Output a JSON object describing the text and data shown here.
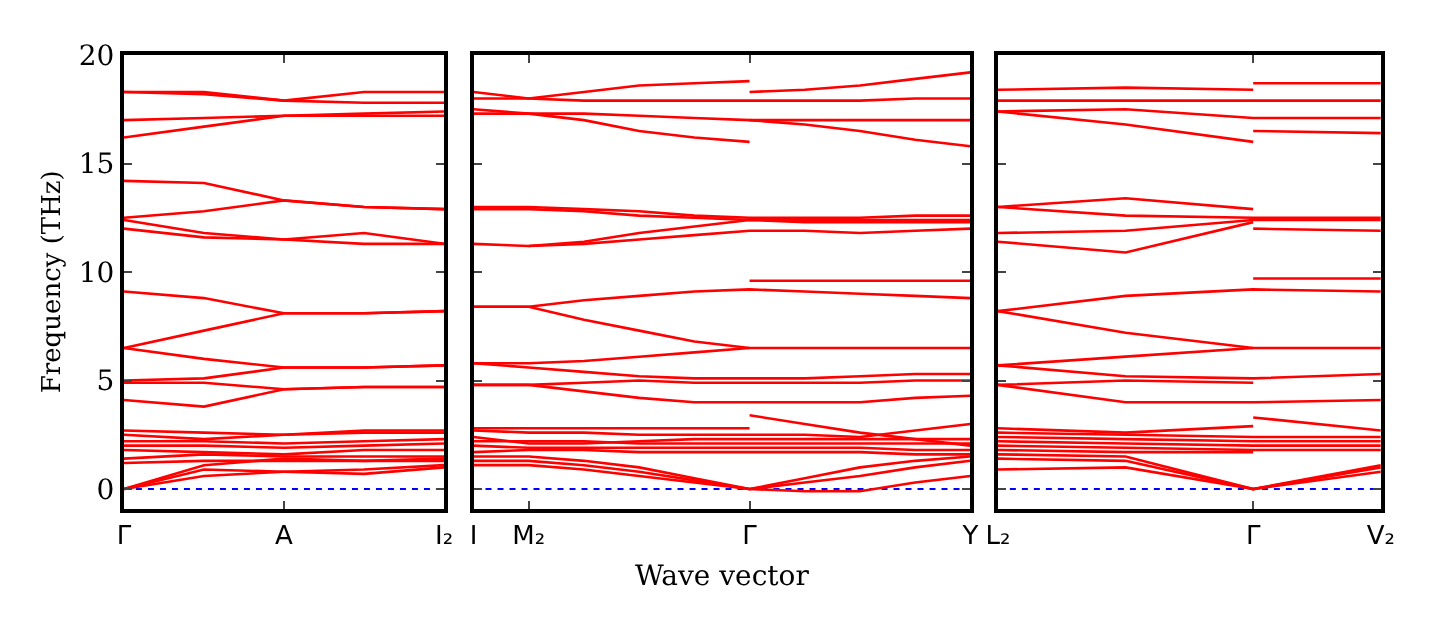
{
  "chart_data": [
    {
      "type": "line",
      "ylabel": "Frequency (THz)",
      "categories": [
        "Γ",
        null,
        "A",
        null,
        "I₂"
      ],
      "ylim": [
        -0.9,
        20
      ],
      "yticks": [
        0,
        5,
        10,
        15,
        20
      ],
      "grid": false,
      "ref_lines": [
        {
          "axis": "y",
          "value": 0,
          "color": "#0000ff",
          "line_style": "dotted"
        }
      ],
      "series": [
        {
          "color": "#ff0000",
          "values": [
            18.3,
            18.3,
            17.9,
            18.3,
            18.3
          ]
        },
        {
          "color": "#ff0000",
          "values": [
            18.3,
            18.2,
            17.9,
            17.8,
            17.8
          ]
        },
        {
          "color": "#ff0000",
          "values": [
            17.0,
            17.1,
            17.2,
            17.3,
            17.4
          ]
        },
        {
          "color": "#ff0000",
          "values": [
            16.2,
            16.7,
            17.2,
            17.2,
            17.2
          ]
        },
        {
          "color": "#ff0000",
          "values": [
            14.2,
            14.1,
            13.3,
            13.0,
            12.9
          ]
        },
        {
          "color": "#ff0000",
          "values": [
            12.5,
            12.8,
            13.3,
            13.0,
            12.9
          ]
        },
        {
          "color": "#ff0000",
          "values": [
            12.4,
            11.8,
            11.5,
            11.8,
            11.3
          ]
        },
        {
          "color": "#ff0000",
          "values": [
            12.0,
            11.6,
            11.5,
            11.3,
            11.3
          ]
        },
        {
          "color": "#ff0000",
          "values": [
            9.1,
            8.8,
            8.1,
            8.1,
            8.2
          ]
        },
        {
          "color": "#ff0000",
          "values": [
            6.5,
            7.3,
            8.1,
            8.1,
            8.2
          ]
        },
        {
          "color": "#ff0000",
          "values": [
            6.5,
            6.0,
            5.6,
            5.6,
            5.7
          ]
        },
        {
          "color": "#ff0000",
          "values": [
            5.0,
            5.1,
            5.6,
            5.6,
            5.7
          ]
        },
        {
          "color": "#ff0000",
          "values": [
            4.9,
            4.9,
            4.6,
            4.7,
            4.7
          ]
        },
        {
          "color": "#ff0000",
          "values": [
            4.1,
            3.8,
            4.6,
            4.7,
            4.7
          ]
        },
        {
          "color": "#ff0000",
          "values": [
            2.7,
            2.6,
            2.5,
            2.7,
            2.7
          ]
        },
        {
          "color": "#ff0000",
          "values": [
            2.5,
            2.3,
            2.5,
            2.6,
            2.6
          ]
        },
        {
          "color": "#ff0000",
          "values": [
            2.2,
            2.2,
            2.1,
            2.2,
            2.3
          ]
        },
        {
          "color": "#ff0000",
          "values": [
            2.0,
            2.0,
            1.9,
            2.0,
            2.1
          ]
        },
        {
          "color": "#ff0000",
          "values": [
            1.8,
            1.7,
            1.6,
            1.8,
            1.8
          ]
        },
        {
          "color": "#ff0000",
          "values": [
            1.4,
            1.6,
            1.5,
            1.5,
            1.5
          ]
        },
        {
          "color": "#ff0000",
          "values": [
            1.2,
            1.3,
            1.3,
            1.3,
            1.3
          ]
        },
        {
          "color": "#ff0000",
          "values": [
            0,
            1.1,
            1.4,
            1.3,
            1.4
          ]
        },
        {
          "color": "#ff0000",
          "values": [
            0,
            0.9,
            0.8,
            0.7,
            1.0
          ]
        },
        {
          "color": "#ff0000",
          "values": [
            0,
            0.6,
            0.8,
            0.9,
            1.1
          ]
        }
      ]
    },
    {
      "type": "line",
      "xlabel": "Wave vector",
      "categories": [
        "I",
        "M₂",
        null,
        null,
        null,
        "Γ",
        null,
        null,
        null,
        "Y"
      ],
      "ylim": [
        -0.9,
        20
      ],
      "yticks": [
        0,
        5,
        10,
        15,
        20
      ],
      "tick_labels": "x",
      "grid": false,
      "ref_lines": [
        {
          "axis": "y",
          "value": 0,
          "color": "#0000ff",
          "line_style": "dotted"
        }
      ],
      "series": [
        {
          "color": "#ff0000",
          "values": [
            18.3,
            18.0,
            18.3,
            18.6,
            18.7,
            18.8,
            null,
            null,
            null,
            null
          ]
        },
        {
          "color": "#ff0000",
          "values": [
            null,
            null,
            null,
            null,
            null,
            18.3,
            18.4,
            18.6,
            18.9,
            19.2
          ]
        },
        {
          "color": "#ff0000",
          "values": [
            18.0,
            18.0,
            17.9,
            17.9,
            17.9,
            17.9,
            17.9,
            17.9,
            18.0,
            18.0
          ]
        },
        {
          "color": "#ff0000",
          "values": [
            17.5,
            17.3,
            17.3,
            17.2,
            17.1,
            17.0,
            17.0,
            17.0,
            17.0,
            17.0
          ]
        },
        {
          "color": "#ff0000",
          "values": [
            17.3,
            17.3,
            17.0,
            16.5,
            16.2,
            16.0,
            null,
            null,
            null,
            null
          ]
        },
        {
          "color": "#ff0000",
          "values": [
            null,
            null,
            null,
            null,
            null,
            17.0,
            16.8,
            16.5,
            16.1,
            15.8
          ]
        },
        {
          "color": "#ff0000",
          "values": [
            13.0,
            13.0,
            12.9,
            12.8,
            12.6,
            12.5,
            12.5,
            12.5,
            12.6,
            12.6
          ]
        },
        {
          "color": "#ff0000",
          "values": [
            12.9,
            12.9,
            12.8,
            12.6,
            12.5,
            12.4,
            12.4,
            12.4,
            12.4,
            12.4
          ]
        },
        {
          "color": "#ff0000",
          "values": [
            11.3,
            11.2,
            11.4,
            11.8,
            12.1,
            12.4,
            12.3,
            12.3,
            12.3,
            12.3
          ]
        },
        {
          "color": "#ff0000",
          "values": [
            null,
            11.2,
            11.3,
            11.5,
            11.7,
            11.9,
            11.9,
            11.8,
            11.9,
            12.0
          ]
        },
        {
          "color": "#ff0000",
          "values": [
            8.4,
            8.4,
            8.7,
            8.9,
            9.1,
            9.2,
            9.1,
            9.0,
            8.9,
            8.8
          ]
        },
        {
          "color": "#ff0000",
          "values": [
            null,
            null,
            null,
            null,
            null,
            9.6,
            9.6,
            9.6,
            9.6,
            9.6
          ]
        },
        {
          "color": "#ff0000",
          "values": [
            8.4,
            8.4,
            7.8,
            7.3,
            6.8,
            6.5,
            6.5,
            6.5,
            6.5,
            6.5
          ]
        },
        {
          "color": "#ff0000",
          "values": [
            5.8,
            5.8,
            5.9,
            6.1,
            6.3,
            6.5,
            null,
            null,
            null,
            null
          ]
        },
        {
          "color": "#ff0000",
          "values": [
            5.8,
            5.6,
            5.4,
            5.2,
            5.1,
            5.1,
            5.1,
            5.2,
            5.3,
            5.3
          ]
        },
        {
          "color": "#ff0000",
          "values": [
            4.8,
            4.8,
            4.9,
            5.0,
            4.9,
            4.9,
            4.9,
            4.9,
            5.0,
            5.0
          ]
        },
        {
          "color": "#ff0000",
          "values": [
            4.8,
            4.8,
            4.5,
            4.2,
            4.0,
            4.0,
            4.0,
            4.0,
            4.2,
            4.3
          ]
        },
        {
          "color": "#ff0000",
          "values": [
            2.8,
            2.8,
            2.8,
            2.8,
            2.8,
            2.8,
            null,
            null,
            null,
            null
          ]
        },
        {
          "color": "#ff0000",
          "values": [
            null,
            null,
            null,
            null,
            null,
            3.4,
            3.0,
            2.6,
            2.3,
            2.0
          ]
        },
        {
          "color": "#ff0000",
          "values": [
            2.7,
            2.6,
            2.6,
            2.5,
            2.5,
            2.5,
            2.5,
            2.4,
            2.7,
            3.0
          ]
        },
        {
          "color": "#ff0000",
          "values": [
            2.4,
            2.1,
            2.1,
            2.2,
            2.3,
            2.3,
            2.3,
            2.3,
            2.3,
            2.3
          ]
        },
        {
          "color": "#ff0000",
          "values": [
            2.2,
            2.2,
            2.2,
            2.1,
            2.1,
            2.1,
            2.1,
            2.1,
            2.1,
            2.1
          ]
        },
        {
          "color": "#ff0000",
          "values": [
            2.0,
            1.9,
            1.9,
            1.9,
            1.9,
            1.9,
            1.9,
            1.9,
            1.8,
            1.8
          ]
        },
        {
          "color": "#ff0000",
          "values": [
            1.7,
            1.8,
            1.8,
            1.7,
            1.7,
            1.7,
            1.7,
            1.7,
            1.6,
            1.6
          ]
        },
        {
          "color": "#ff0000",
          "values": [
            1.5,
            1.5,
            1.3,
            1.0,
            0.5,
            0,
            0.5,
            1.0,
            1.3,
            1.5
          ]
        },
        {
          "color": "#ff0000",
          "values": [
            1.3,
            1.3,
            1.1,
            0.8,
            0.4,
            0,
            0.3,
            0.6,
            1.0,
            1.3
          ]
        },
        {
          "color": "#ff0000",
          "values": [
            1.1,
            1.1,
            0.9,
            0.6,
            0.3,
            0,
            -0.1,
            -0.1,
            0.3,
            0.6
          ]
        }
      ]
    },
    {
      "type": "line",
      "categories": [
        "L₂",
        null,
        "Γ",
        "V₂"
      ],
      "ylim": [
        -0.9,
        20
      ],
      "yticks": [
        0,
        5,
        10,
        15,
        20
      ],
      "tick_labels": "x",
      "grid": false,
      "ref_lines": [
        {
          "axis": "y",
          "value": 0,
          "color": "#0000ff",
          "line_style": "dotted"
        }
      ],
      "series": [
        {
          "color": "#ff0000",
          "values": [
            18.4,
            18.5,
            18.4,
            null
          ]
        },
        {
          "color": "#ff0000",
          "values": [
            null,
            null,
            18.7,
            18.7
          ]
        },
        {
          "color": "#ff0000",
          "values": [
            17.9,
            17.9,
            17.9,
            17.9
          ]
        },
        {
          "color": "#ff0000",
          "values": [
            17.4,
            17.5,
            17.1,
            17.1
          ]
        },
        {
          "color": "#ff0000",
          "values": [
            17.4,
            16.8,
            16.0,
            null
          ]
        },
        {
          "color": "#ff0000",
          "values": [
            null,
            null,
            16.5,
            16.4
          ]
        },
        {
          "color": "#ff0000",
          "values": [
            13.0,
            13.4,
            12.9,
            null
          ]
        },
        {
          "color": "#ff0000",
          "values": [
            13.0,
            12.6,
            12.5,
            12.5
          ]
        },
        {
          "color": "#ff0000",
          "values": [
            11.8,
            11.9,
            12.4,
            12.4
          ]
        },
        {
          "color": "#ff0000",
          "values": [
            11.4,
            10.9,
            12.3,
            null
          ]
        },
        {
          "color": "#ff0000",
          "values": [
            null,
            null,
            12.0,
            11.9
          ]
        },
        {
          "color": "#ff0000",
          "values": [
            8.2,
            8.9,
            9.2,
            9.1
          ]
        },
        {
          "color": "#ff0000",
          "values": [
            null,
            null,
            9.7,
            9.7
          ]
        },
        {
          "color": "#ff0000",
          "values": [
            8.2,
            7.2,
            6.5,
            6.5
          ]
        },
        {
          "color": "#ff0000",
          "values": [
            5.7,
            6.1,
            6.5,
            null
          ]
        },
        {
          "color": "#ff0000",
          "values": [
            5.7,
            5.2,
            5.1,
            5.3
          ]
        },
        {
          "color": "#ff0000",
          "values": [
            4.8,
            5.0,
            4.9,
            null
          ]
        },
        {
          "color": "#ff0000",
          "values": [
            4.8,
            4.0,
            4.0,
            4.1
          ]
        },
        {
          "color": "#ff0000",
          "values": [
            2.8,
            2.6,
            2.9,
            null
          ]
        },
        {
          "color": "#ff0000",
          "values": [
            null,
            null,
            3.3,
            2.7
          ]
        },
        {
          "color": "#ff0000",
          "values": [
            2.6,
            2.5,
            2.4,
            2.4
          ]
        },
        {
          "color": "#ff0000",
          "values": [
            2.4,
            2.3,
            2.2,
            2.2
          ]
        },
        {
          "color": "#ff0000",
          "values": [
            2.2,
            2.1,
            2.0,
            2.0
          ]
        },
        {
          "color": "#ff0000",
          "values": [
            2.0,
            1.9,
            1.8,
            1.8
          ]
        },
        {
          "color": "#ff0000",
          "values": [
            1.8,
            1.7,
            1.7,
            null
          ]
        },
        {
          "color": "#ff0000",
          "values": [
            1.6,
            1.5,
            0,
            1.1
          ]
        },
        {
          "color": "#ff0000",
          "values": [
            1.4,
            1.3,
            0,
            1.0
          ]
        },
        {
          "color": "#ff0000",
          "values": [
            0.9,
            1.0,
            0,
            0.8
          ]
        }
      ]
    }
  ]
}
